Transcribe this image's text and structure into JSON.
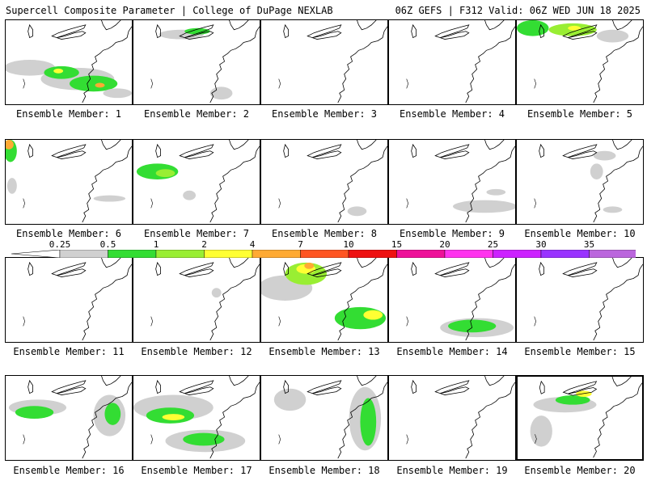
{
  "header": {
    "title_left": "Supercell Composite Parameter | College of DuPage NEXLAB",
    "title_right": "06Z GEFS | F312 Valid: 06Z WED JUN 18 2025"
  },
  "legend": {
    "ticks": [
      "0.25",
      "0.5",
      "1",
      "2",
      "4",
      "7",
      "10",
      "15",
      "20",
      "25",
      "30",
      "35"
    ],
    "colors": [
      "#d0d0d0",
      "#33dd33",
      "#99ee33",
      "#ffff33",
      "#ffaa33",
      "#ff5522",
      "#ee1111",
      "#ee1199",
      "#ff33ee",
      "#cc22ff",
      "#9933ff",
      "#bb66dd",
      "#33eeee"
    ]
  },
  "panels": [
    {
      "label": "Ensemble Member: 1"
    },
    {
      "label": "Ensemble Member: 2"
    },
    {
      "label": "Ensemble Member: 3"
    },
    {
      "label": "Ensemble Member: 4"
    },
    {
      "label": "Ensemble Member: 5"
    },
    {
      "label": "Ensemble Member: 6"
    },
    {
      "label": "Ensemble Member: 7"
    },
    {
      "label": "Ensemble Member: 8"
    },
    {
      "label": "Ensemble Member: 9"
    },
    {
      "label": "Ensemble Member: 10"
    },
    {
      "label": "Ensemble Member: 11"
    },
    {
      "label": "Ensemble Member: 12"
    },
    {
      "label": "Ensemble Member: 13"
    },
    {
      "label": "Ensemble Member: 14"
    },
    {
      "label": "Ensemble Member: 15"
    },
    {
      "label": "Ensemble Member: 16"
    },
    {
      "label": "Ensemble Member: 17"
    },
    {
      "label": "Ensemble Member: 18"
    },
    {
      "label": "Ensemble Member: 19"
    },
    {
      "label": "Ensemble Member: 20"
    }
  ]
}
